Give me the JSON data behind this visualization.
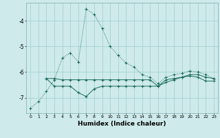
{
  "xlabel": "Humidex (Indice chaleur)",
  "background_color": "#ceeaea",
  "grid_color": "#9ecece",
  "line_color": "#1a6b5a",
  "xlim": [
    -0.5,
    23.5
  ],
  "ylim": [
    -7.6,
    -3.3
  ],
  "yticks": [
    -7,
    -6,
    -5,
    -4
  ],
  "xticks": [
    0,
    1,
    2,
    3,
    4,
    5,
    6,
    7,
    8,
    9,
    10,
    11,
    12,
    13,
    14,
    15,
    16,
    17,
    18,
    19,
    20,
    21,
    22,
    23
  ],
  "series1_x": [
    0,
    1,
    2,
    3,
    4,
    5,
    6,
    7,
    8,
    9,
    10,
    11,
    12,
    13,
    14,
    15,
    16,
    17,
    18,
    19,
    20,
    21,
    22,
    23
  ],
  "series1_y": [
    -7.4,
    -7.15,
    -6.75,
    -6.3,
    -5.45,
    -5.25,
    -5.6,
    -3.55,
    -3.75,
    -4.3,
    -5.0,
    -5.35,
    -5.65,
    -5.8,
    -6.1,
    -6.2,
    -6.45,
    -6.2,
    -6.1,
    -6.05,
    -5.95,
    -6.0,
    -6.1,
    -6.25
  ],
  "series2_x": [
    2,
    3,
    4,
    5,
    6,
    7,
    8,
    9,
    10,
    11,
    12,
    13,
    14,
    15,
    16,
    17,
    18,
    19,
    20,
    21,
    22,
    23
  ],
  "series2_y": [
    -6.25,
    -6.25,
    -6.3,
    -6.3,
    -6.3,
    -6.3,
    -6.3,
    -6.3,
    -6.3,
    -6.3,
    -6.3,
    -6.3,
    -6.3,
    -6.3,
    -6.55,
    -6.3,
    -6.25,
    -6.2,
    -6.1,
    -6.1,
    -6.2,
    -6.25
  ],
  "series3_x": [
    2,
    3,
    4,
    5,
    6,
    7,
    8,
    9,
    10,
    11,
    12,
    13,
    14,
    15,
    16,
    17,
    18,
    19,
    20,
    21,
    22,
    23
  ],
  "series3_y": [
    -6.25,
    -6.55,
    -6.55,
    -6.55,
    -6.8,
    -6.95,
    -6.65,
    -6.55,
    -6.55,
    -6.55,
    -6.55,
    -6.55,
    -6.55,
    -6.55,
    -6.55,
    -6.4,
    -6.3,
    -6.2,
    -6.15,
    -6.2,
    -6.35,
    -6.35
  ]
}
